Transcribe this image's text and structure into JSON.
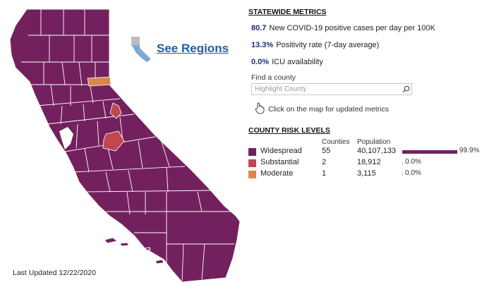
{
  "map": {
    "last_updated": "Last Updated 12/22/2020",
    "see_regions_label": "See Regions",
    "colors": {
      "widespread": "#73215e",
      "substantial": "#c0464f",
      "moderate": "#d9874c",
      "regions_icon_fill": "#7aa9d6",
      "regions_icon_gray": "#bdbdbd",
      "link": "#1f5fa8"
    },
    "highlighted_counties": [
      {
        "tier": "moderate",
        "label": "Sierra"
      },
      {
        "tier": "substantial",
        "label": "Alpine"
      },
      {
        "tier": "substantial",
        "label": "Mariposa"
      }
    ]
  },
  "statewide": {
    "title": "STATEWIDE METRICS",
    "metrics": [
      {
        "value": "80.7",
        "label": "New COVID-19 positive cases per day per 100K"
      },
      {
        "value": "13.3%",
        "label": "Positivity rate (7-day average)"
      },
      {
        "value": "0.0%",
        "label": "ICU availability"
      }
    ]
  },
  "search": {
    "label": "Find a county",
    "placeholder": "Highlight County",
    "icon": "search-icon"
  },
  "hint": {
    "icon": "pointer-hand-icon",
    "text": "Click on the map for updated metrics"
  },
  "risk": {
    "title": "COUNTY RISK LEVELS",
    "columns": {
      "counties": "Counties",
      "population": "Population"
    },
    "levels": [
      {
        "name": "Widespread",
        "counties": "55",
        "population": "40,107,133",
        "percent_label": "99.9%",
        "percent": 99.9,
        "color": "#73215e"
      },
      {
        "name": "Substantial",
        "counties": "2",
        "population": "18,912",
        "percent_label": "0.0%",
        "percent": 0.0,
        "color": "#c0464f"
      },
      {
        "name": "Moderate",
        "counties": "1",
        "population": "3,115",
        "percent_label": "0.0%",
        "percent": 0.0,
        "color": "#d9874c"
      }
    ]
  }
}
